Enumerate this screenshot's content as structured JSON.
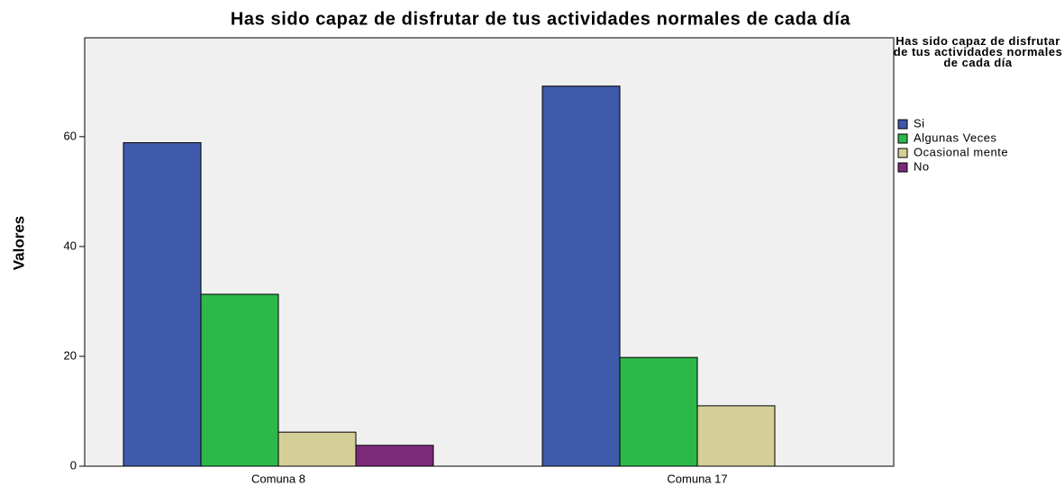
{
  "chart_data": {
    "type": "bar",
    "title": "Has sido capaz de disfrutar de tus actividades normales de cada día",
    "y_label": "Valores",
    "legend_title": "Has sido capaz de disfrutar de tus actividades normales de cada día",
    "categories": [
      "Comuna 8",
      "Comuna 17"
    ],
    "series": [
      {
        "name": "Si",
        "color": "#3f59ab",
        "values": [
          58.9,
          69.2
        ]
      },
      {
        "name": "Algunas Veces",
        "color": "#2db84a",
        "values": [
          31.3,
          19.8
        ]
      },
      {
        "name": "Ocasional mente",
        "color": "#d4cf97",
        "values": [
          6.2,
          11.0
        ]
      },
      {
        "name": "No",
        "color": "#7b2a7b",
        "values": [
          3.8,
          0
        ]
      }
    ],
    "ylim": [
      0,
      78
    ],
    "yticks": [
      0,
      20,
      40,
      60
    ],
    "legend": "right"
  }
}
